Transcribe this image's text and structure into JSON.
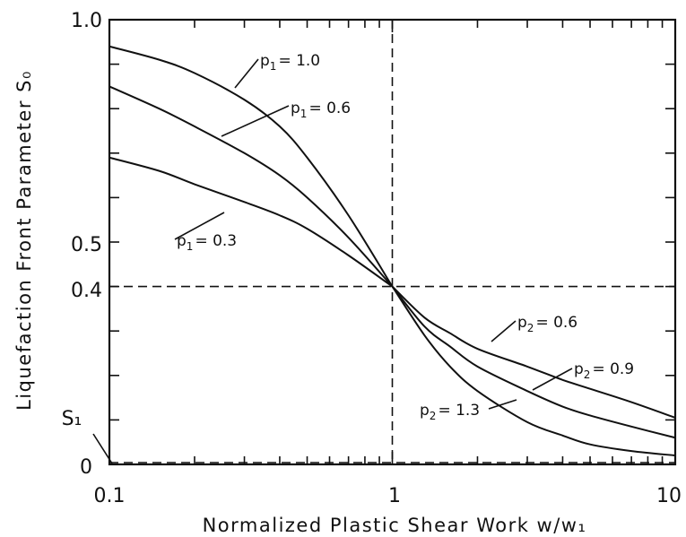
{
  "chart_data": {
    "type": "line",
    "title": "",
    "xlabel": "Normalized Plastic Shear Work w/w₁",
    "ylabel": "Liquefaction Front Parameter S₀",
    "x_scale": "log",
    "xlim": [
      0.1,
      10
    ],
    "ylim": [
      0,
      1.0
    ],
    "x_tick_labels": [
      "0.1",
      "1",
      "10"
    ],
    "y_tick_labels": [
      {
        "value": 1.0,
        "label": "1.0"
      },
      {
        "value": 0.5,
        "label": "0.5"
      },
      {
        "value": 0.4,
        "label": "0.4"
      },
      {
        "value": 0.1,
        "label": "S₁"
      },
      {
        "value": 0.0,
        "label": "0"
      }
    ],
    "reference_lines": {
      "x": 1,
      "y": [
        0.4,
        0.0
      ]
    },
    "series": [
      {
        "name": "p₁ = 1.0",
        "x": [
          0.1,
          0.15,
          0.2,
          0.3,
          0.4,
          0.5,
          0.7,
          1.0
        ],
        "y": [
          0.94,
          0.91,
          0.88,
          0.82,
          0.76,
          0.69,
          0.56,
          0.4
        ]
      },
      {
        "name": "p₁ = 0.6",
        "x": [
          0.1,
          0.15,
          0.2,
          0.3,
          0.4,
          0.5,
          0.7,
          1.0
        ],
        "y": [
          0.85,
          0.8,
          0.76,
          0.7,
          0.65,
          0.6,
          0.51,
          0.4
        ]
      },
      {
        "name": "p₁ = 0.3",
        "x": [
          0.1,
          0.15,
          0.2,
          0.3,
          0.4,
          0.5,
          0.7,
          1.0
        ],
        "y": [
          0.69,
          0.66,
          0.63,
          0.59,
          0.56,
          0.53,
          0.47,
          0.4
        ]
      },
      {
        "name": "p₂ = 0.6",
        "x": [
          1.0,
          1.3,
          1.6,
          2.0,
          3.0,
          4.0,
          5.0,
          7.0,
          10.0
        ],
        "y": [
          0.4,
          0.33,
          0.295,
          0.26,
          0.22,
          0.19,
          0.17,
          0.14,
          0.105
        ]
      },
      {
        "name": "p₂ = 0.9",
        "x": [
          1.0,
          1.3,
          1.6,
          2.0,
          3.0,
          4.0,
          5.0,
          7.0,
          10.0
        ],
        "y": [
          0.4,
          0.31,
          0.265,
          0.22,
          0.165,
          0.13,
          0.11,
          0.085,
          0.06
        ]
      },
      {
        "name": "p₂ = 1.3",
        "x": [
          1.0,
          1.3,
          1.6,
          2.0,
          3.0,
          4.0,
          5.0,
          7.0,
          10.0
        ],
        "y": [
          0.4,
          0.29,
          0.22,
          0.165,
          0.095,
          0.065,
          0.045,
          0.03,
          0.02
        ]
      }
    ],
    "curve_labels": [
      {
        "main": "p",
        "sub": "1",
        "value": "= 1.0"
      },
      {
        "main": "p",
        "sub": "1",
        "value": "= 0.6"
      },
      {
        "main": "p",
        "sub": "1",
        "value": "= 0.3"
      },
      {
        "main": "p",
        "sub": "2",
        "value": "= 0.6"
      },
      {
        "main": "p",
        "sub": "2",
        "value": "= 0.9"
      },
      {
        "main": "p",
        "sub": "2",
        "value": "= 1.3"
      }
    ]
  }
}
